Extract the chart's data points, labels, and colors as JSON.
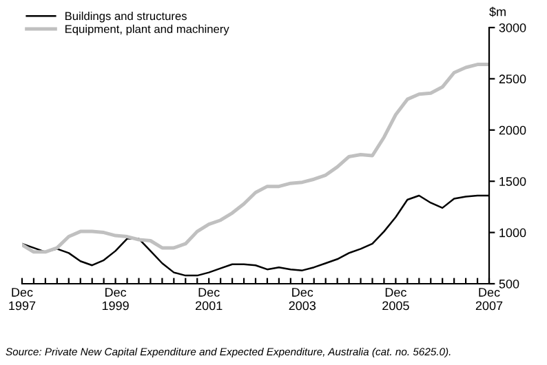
{
  "chart_data": {
    "type": "line",
    "categories": [
      "Dec\n1997",
      null,
      null,
      null,
      null,
      null,
      null,
      null,
      "Dec\n1999",
      null,
      null,
      null,
      null,
      null,
      null,
      null,
      "Dec\n2001",
      null,
      null,
      null,
      null,
      null,
      null,
      null,
      "Dec\n2003",
      null,
      null,
      null,
      null,
      null,
      null,
      null,
      "Dec\n2005",
      null,
      null,
      null,
      null,
      null,
      null,
      null,
      "Dec\n2007"
    ],
    "series": [
      {
        "name": "Buildings and structures",
        "color": "#000000",
        "values": [
          890,
          850,
          810,
          840,
          800,
          720,
          680,
          730,
          820,
          940,
          940,
          820,
          700,
          610,
          580,
          580,
          610,
          650,
          690,
          690,
          680,
          640,
          660,
          640,
          630,
          660,
          700,
          740,
          800,
          840,
          890,
          1010,
          1150,
          1320,
          1360,
          1290,
          1240,
          1330,
          1350,
          1360,
          1360
        ]
      },
      {
        "name": "Equipment, plant and machinery",
        "color": "#c0c0c0",
        "values": [
          880,
          810,
          810,
          850,
          960,
          1010,
          1010,
          1000,
          970,
          960,
          930,
          920,
          850,
          850,
          890,
          1010,
          1080,
          1120,
          1190,
          1280,
          1390,
          1450,
          1450,
          1480,
          1490,
          1520,
          1560,
          1640,
          1740,
          1760,
          1750,
          1930,
          2150,
          2300,
          2350,
          2360,
          2420,
          2560,
          2610,
          2640,
          2640
        ]
      }
    ],
    "ylim": [
      500,
      3000
    ],
    "yticks": [
      500,
      1000,
      1500,
      2000,
      2500,
      3000
    ],
    "ylabel": "$m",
    "grid": false,
    "legend": "top left",
    "marker": "none",
    "line_style": "solid",
    "annotations": [
      "Source: Private New Capital Expenditure and Expected Expenditure, Australia (cat. no. 5625.0)."
    ]
  }
}
